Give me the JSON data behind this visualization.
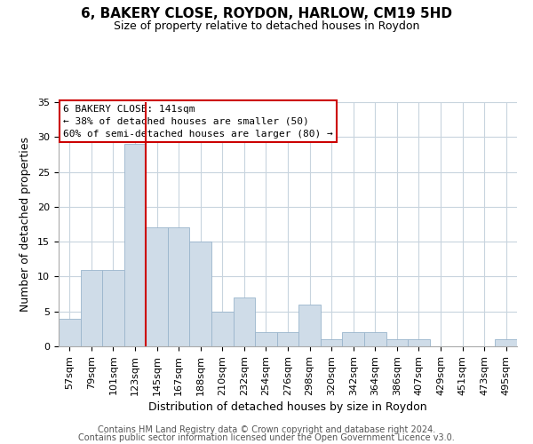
{
  "title": "6, BAKERY CLOSE, ROYDON, HARLOW, CM19 5HD",
  "subtitle": "Size of property relative to detached houses in Roydon",
  "xlabel": "Distribution of detached houses by size in Roydon",
  "ylabel": "Number of detached properties",
  "bar_color": "#cfdce8",
  "bar_edge_color": "#9ab5cc",
  "vline_color": "#cc0000",
  "vline_x_idx": 3.5,
  "categories": [
    "57sqm",
    "79sqm",
    "101sqm",
    "123sqm",
    "145sqm",
    "167sqm",
    "188sqm",
    "210sqm",
    "232sqm",
    "254sqm",
    "276sqm",
    "298sqm",
    "320sqm",
    "342sqm",
    "364sqm",
    "386sqm",
    "407sqm",
    "429sqm",
    "451sqm",
    "473sqm",
    "495sqm"
  ],
  "values": [
    4,
    11,
    11,
    29,
    17,
    17,
    15,
    5,
    7,
    2,
    2,
    6,
    1,
    2,
    2,
    1,
    1,
    0,
    0,
    0,
    1
  ],
  "ylim": [
    0,
    35
  ],
  "yticks": [
    0,
    5,
    10,
    15,
    20,
    25,
    30,
    35
  ],
  "annotation_line1": "6 BAKERY CLOSE: 141sqm",
  "annotation_line2": "← 38% of detached houses are smaller (50)",
  "annotation_line3": "60% of semi-detached houses are larger (80) →",
  "footer_line1": "Contains HM Land Registry data © Crown copyright and database right 2024.",
  "footer_line2": "Contains public sector information licensed under the Open Government Licence v3.0.",
  "background_color": "#ffffff",
  "grid_color": "#c8d4de",
  "title_fontsize": 11,
  "subtitle_fontsize": 9,
  "axis_label_fontsize": 9,
  "tick_fontsize": 8,
  "annotation_fontsize": 8,
  "footer_fontsize": 7
}
